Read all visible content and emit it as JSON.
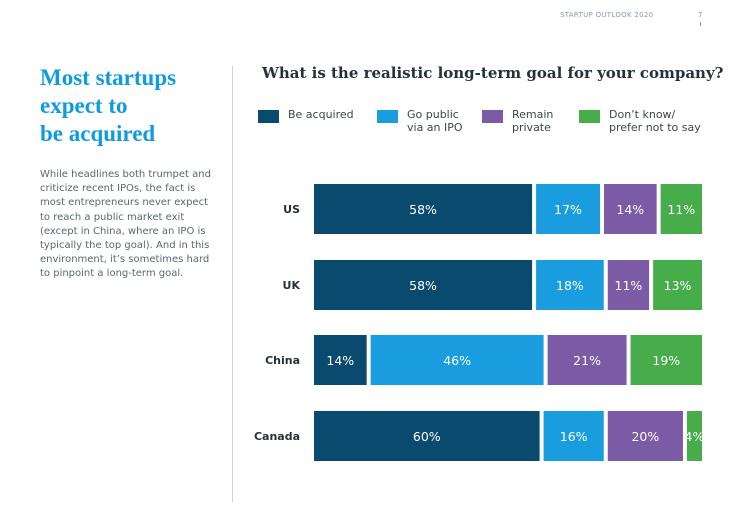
{
  "header": {
    "label": "STARTUP OUTLOOK 2020",
    "page": "7"
  },
  "sidebar": {
    "title_lines": [
      "Most startups",
      "expect to",
      "be acquired"
    ],
    "body_lines": [
      "While headlines both trumpet and",
      "criticize recent IPOs, the fact is",
      "most entrepreneurs never expect",
      "to reach a public market exit",
      "(except in China, where an IPO is",
      "typically the top goal). And in this",
      "environment, it’s sometimes hard",
      "to pinpoint a long-term goal."
    ]
  },
  "legend": [
    {
      "lines": [
        "Be acquired"
      ]
    },
    {
      "lines": [
        "Go public",
        "via an IPO"
      ]
    },
    {
      "lines": [
        "Remain",
        "private"
      ]
    },
    {
      "lines": [
        "Don’t know/",
        "prefer not to say"
      ]
    }
  ],
  "chart_data": {
    "type": "bar",
    "orientation": "horizontal",
    "stacked": true,
    "title": "What is the realistic long-term goal for your company?",
    "categories": [
      "US",
      "UK",
      "China",
      "Canada"
    ],
    "series": [
      {
        "name": "Be acquired",
        "values": [
          58,
          58,
          14,
          60
        ],
        "labels": [
          "58%",
          "58%",
          "14%",
          "60%"
        ],
        "color": "#0b4a6f"
      },
      {
        "name": "Go public via an IPO",
        "values": [
          17,
          18,
          46,
          16
        ],
        "labels": [
          "17%",
          "18%",
          "46%",
          "16%"
        ],
        "color": "#1a9ddf"
      },
      {
        "name": "Remain private",
        "values": [
          14,
          11,
          21,
          20
        ],
        "labels": [
          "14%",
          "11%",
          "21%",
          "20%"
        ],
        "color": "#7b5aa6"
      },
      {
        "name": "Don’t know/prefer not to say",
        "values": [
          11,
          13,
          19,
          4
        ],
        "labels": [
          "11%",
          "13%",
          "19%",
          "4%"
        ],
        "color": "#46ad4a"
      }
    ],
    "xlim": [
      0,
      100
    ],
    "legend_position": "top",
    "grid": false
  }
}
